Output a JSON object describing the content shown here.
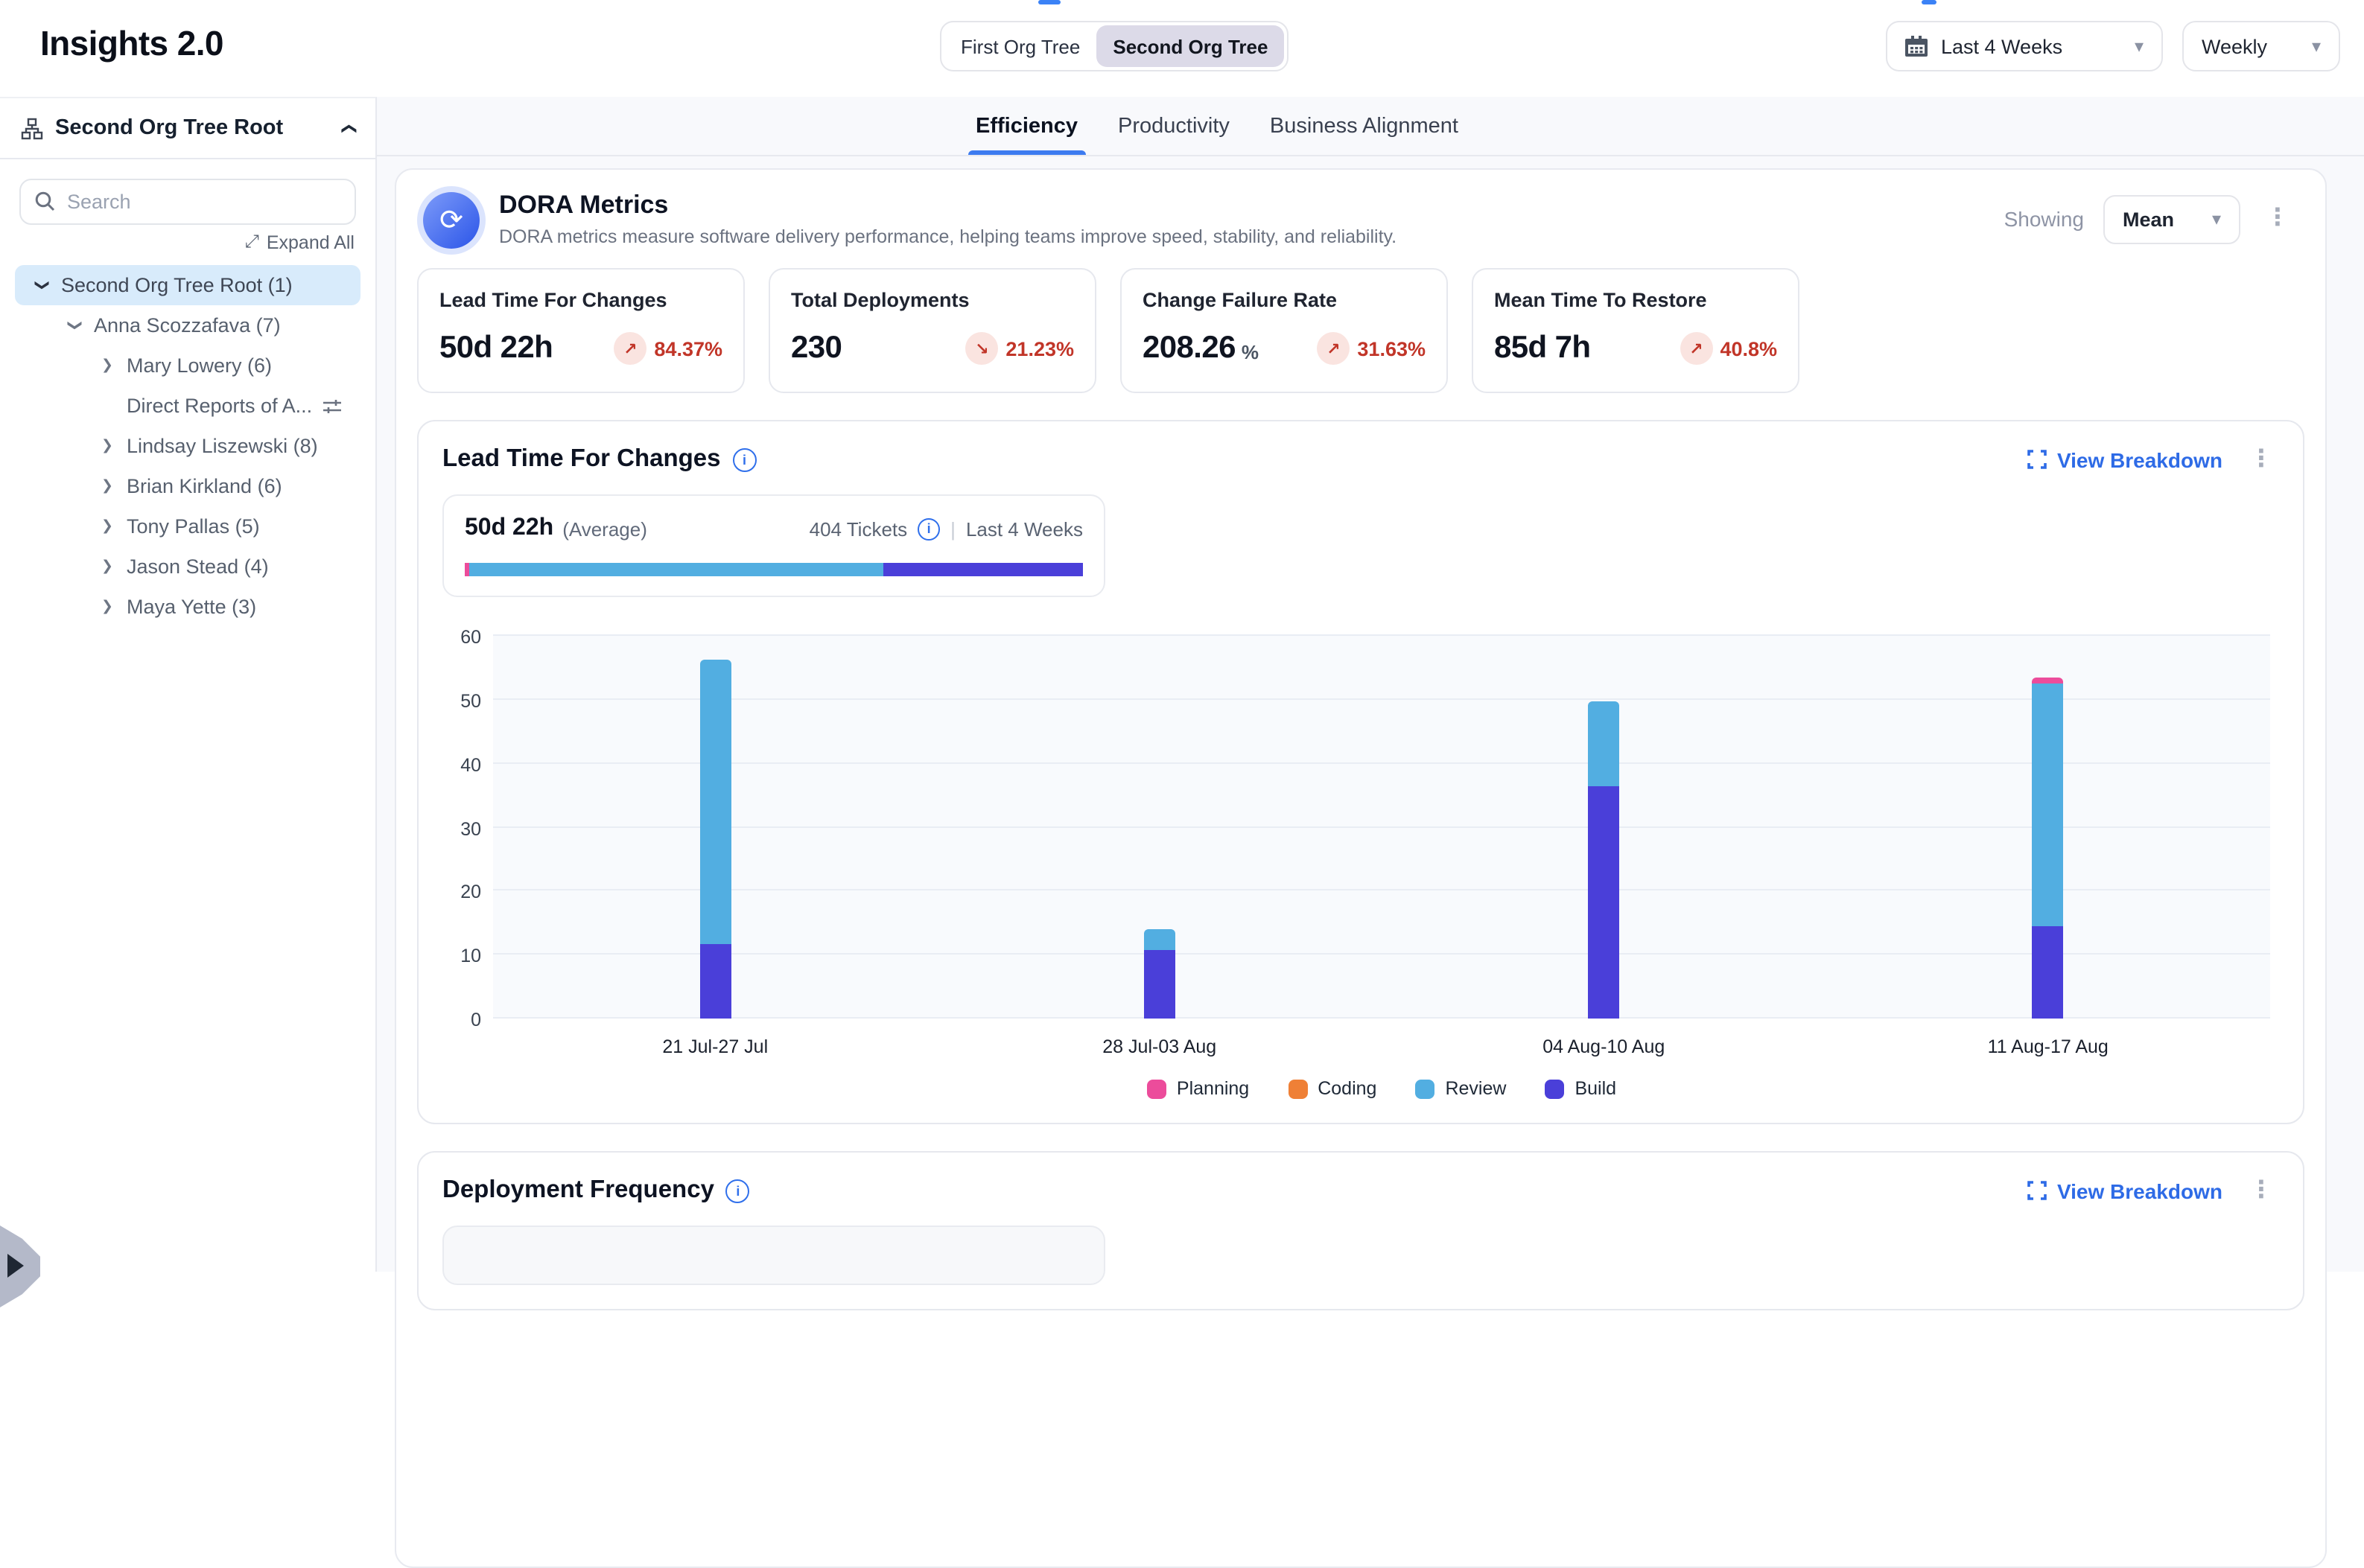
{
  "header": {
    "title": "Insights 2.0",
    "org_tree_toggle": {
      "options": [
        "First Org Tree",
        "Second Org Tree"
      ],
      "active_index": 1
    },
    "date_range_dropdown": "Last 4 Weeks",
    "granularity_dropdown": "Weekly"
  },
  "sidebar": {
    "header_label": "Second Org Tree Root",
    "search_placeholder": "Search",
    "expand_all_label": "Expand All",
    "tree_items": [
      {
        "label": "Second Org Tree Root (1)",
        "level": 0,
        "chevron": "down",
        "selected": true
      },
      {
        "label": "Anna Scozzafava (7)",
        "level": 1,
        "chevron": "down",
        "selected": false
      },
      {
        "label": "Mary Lowery (6)",
        "level": 2,
        "chevron": "right",
        "selected": false
      },
      {
        "label": "Direct Reports of A...",
        "level": 2,
        "chevron": "none",
        "selected": false,
        "trailing_icon": "filter-sliders"
      },
      {
        "label": "Lindsay Liszewski (8)",
        "level": 2,
        "chevron": "right",
        "selected": false
      },
      {
        "label": "Brian Kirkland (6)",
        "level": 2,
        "chevron": "right",
        "selected": false
      },
      {
        "label": "Tony Pallas (5)",
        "level": 2,
        "chevron": "right",
        "selected": false
      },
      {
        "label": "Jason Stead (4)",
        "level": 2,
        "chevron": "right",
        "selected": false
      },
      {
        "label": "Maya Yette (3)",
        "level": 2,
        "chevron": "right",
        "selected": false
      }
    ]
  },
  "tabs": [
    {
      "label": "Efficiency",
      "active": true
    },
    {
      "label": "Productivity",
      "active": false
    },
    {
      "label": "Business Alignment",
      "active": false
    }
  ],
  "dora": {
    "title": "DORA Metrics",
    "subtitle": "DORA metrics measure software delivery performance, helping teams improve speed, stability, and reliability.",
    "showing_label": "Showing",
    "showing_value": "Mean",
    "metric_cards": [
      {
        "title": "Lead Time For Changes",
        "value": "50d 22h",
        "value_suffix": "",
        "trend": "up",
        "change": "84.37%"
      },
      {
        "title": "Total Deployments",
        "value": "230",
        "value_suffix": "",
        "trend": "down",
        "change": "21.23%"
      },
      {
        "title": "Change Failure Rate",
        "value": "208.26",
        "value_suffix": "%",
        "trend": "up",
        "change": "31.63%"
      },
      {
        "title": "Mean Time To Restore",
        "value": "85d 7h",
        "value_suffix": "",
        "trend": "up",
        "change": "40.8%"
      }
    ]
  },
  "lead_time_section": {
    "title": "Lead Time For Changes",
    "view_breakdown_label": "View Breakdown",
    "average_value": "50d 22h",
    "average_suffix": "(Average)",
    "tickets_label": "404 Tickets",
    "divider": "|",
    "period_label": "Last 4 Weeks",
    "average_bar_segments": [
      {
        "name": "Planning",
        "pct": 0.8,
        "color": "#EC4C9B"
      },
      {
        "name": "Review",
        "pct": 66.9,
        "color": "#52AEE1"
      },
      {
        "name": "Build",
        "pct": 32.3,
        "color": "#4A3FD9"
      }
    ]
  },
  "chart_data": {
    "type": "bar",
    "stacked": true,
    "title": "Lead Time For Changes",
    "categories": [
      "21 Jul-27 Jul",
      "28 Jul-03 Aug",
      "04 Aug-10 Aug",
      "11 Aug-17 Aug"
    ],
    "series": [
      {
        "name": "Planning",
        "color": "#EC4C9B",
        "values": [
          0,
          0,
          0,
          1
        ]
      },
      {
        "name": "Coding",
        "color": "#EF8036",
        "values": [
          0,
          0,
          0,
          0
        ]
      },
      {
        "name": "Review",
        "color": "#52AEE1",
        "values": [
          44.5,
          3.4,
          13.3,
          38
        ]
      },
      {
        "name": "Build",
        "color": "#4A3FD9",
        "values": [
          11.7,
          10.7,
          36.5,
          14.5
        ]
      }
    ],
    "ylim": [
      0,
      60
    ],
    "yticks": [
      0,
      10,
      20,
      30,
      40,
      50,
      60
    ],
    "grid": true,
    "legend_position": "bottom",
    "bar_centers_pct": [
      12.5,
      37.5,
      62.5,
      87.5
    ]
  },
  "deployment_section": {
    "title": "Deployment Frequency",
    "view_breakdown_label": "View Breakdown"
  },
  "colors": {
    "accent_blue": "#2F6FEB",
    "link_blue": "#2E6BE6",
    "danger_red": "#C13528",
    "danger_bg": "#FAE4E0",
    "selected_row_bg": "#D8EBFB",
    "segment_active_bg": "#DCDAE8",
    "main_bg": "#F8F9FC",
    "plot_bg": "#F8FAFD",
    "gridline": "#E9EDF4"
  }
}
